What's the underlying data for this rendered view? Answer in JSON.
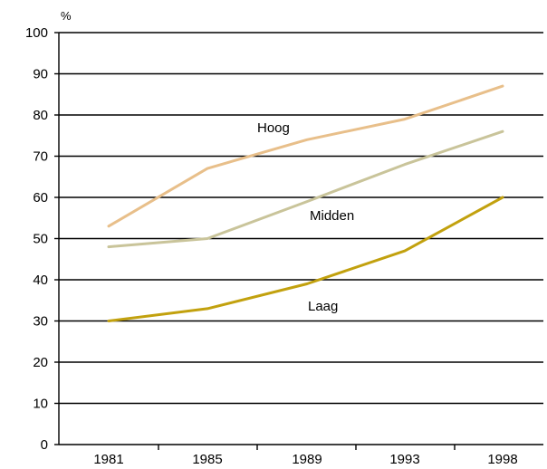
{
  "chart_data": {
    "type": "line",
    "title": "",
    "xlabel": "",
    "ylabel": "%",
    "categories": [
      "1981",
      "1985",
      "1989",
      "1993",
      "1998"
    ],
    "ylim": [
      0,
      100
    ],
    "yticks": [
      0,
      10,
      20,
      30,
      40,
      50,
      60,
      70,
      80,
      90,
      100
    ],
    "grid": true,
    "series": [
      {
        "name": "Hoog",
        "color": "#e8bf8a",
        "values": [
          53,
          67,
          74,
          79,
          87
        ]
      },
      {
        "name": "Midden",
        "color": "#c9c49a",
        "values": [
          48,
          50,
          59,
          68,
          76
        ]
      },
      {
        "name": "Laag",
        "color": "#c2a10e",
        "values": [
          30,
          33,
          39,
          47,
          60
        ]
      }
    ]
  }
}
